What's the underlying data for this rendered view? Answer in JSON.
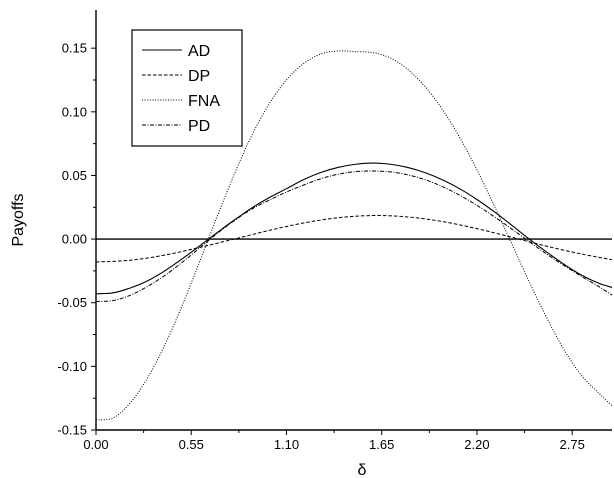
{
  "chart_data": {
    "type": "line",
    "title": "",
    "xlabel": "δ",
    "ylabel": "Payoffs",
    "xlim": [
      0,
      2.98
    ],
    "ylim": [
      -0.15,
      0.18
    ],
    "x_ticks": [
      0.0,
      0.55,
      1.1,
      1.65,
      2.2,
      2.75
    ],
    "x_tick_labels": [
      "0.00",
      "0.55",
      "1.10",
      "1.65",
      "2.20",
      "2.75"
    ],
    "y_ticks": [
      -0.15,
      -0.1,
      -0.05,
      0.0,
      0.05,
      0.1,
      0.15
    ],
    "y_tick_labels": [
      "-0.15",
      "-0.10",
      "-0.05",
      "0.00",
      "0.05",
      "0.10",
      "0.15"
    ],
    "grid": false,
    "zero_line": true,
    "legend_position": "top-left",
    "series": [
      {
        "name": "AD",
        "style": "solid",
        "x": [
          0.0,
          0.1,
          0.2,
          0.3,
          0.4,
          0.5,
          0.6,
          0.7,
          0.8,
          0.9,
          1.0,
          1.1,
          1.2,
          1.3,
          1.4,
          1.5,
          1.6,
          1.7,
          1.8,
          1.9,
          2.0,
          2.1,
          2.2,
          2.3,
          2.4,
          2.5,
          2.6,
          2.7,
          2.8,
          2.9,
          2.98
        ],
        "y": [
          -0.043,
          -0.0422,
          -0.0383,
          -0.0326,
          -0.0247,
          -0.0153,
          -0.0052,
          0.0051,
          0.0151,
          0.0245,
          0.0326,
          0.0396,
          0.0468,
          0.0524,
          0.0564,
          0.0588,
          0.0597,
          0.0588,
          0.0563,
          0.0522,
          0.0466,
          0.0396,
          0.0311,
          0.0215,
          0.011,
          0.0002,
          -0.0099,
          -0.0195,
          -0.028,
          -0.0345,
          -0.038
        ]
      },
      {
        "name": "DP",
        "style": "dashed",
        "x": [
          0.0,
          0.2,
          0.4,
          0.6,
          0.8,
          1.0,
          1.2,
          1.4,
          1.6,
          1.8,
          2.0,
          2.2,
          2.4,
          2.6,
          2.8,
          2.98
        ],
        "y": [
          -0.018,
          -0.0166,
          -0.0125,
          -0.0065,
          0.0001,
          0.0068,
          0.0127,
          0.0168,
          0.0185,
          0.0174,
          0.0138,
          0.0082,
          0.0015,
          -0.0055,
          -0.0116,
          -0.0162
        ]
      },
      {
        "name": "FNA",
        "style": "dotted",
        "x": [
          0.0,
          0.1,
          0.2,
          0.3,
          0.4,
          0.5,
          0.6,
          0.7,
          0.8,
          0.9,
          1.0,
          1.1,
          1.2,
          1.3,
          1.4,
          1.5,
          1.6,
          1.7,
          1.8,
          1.9,
          2.0,
          2.1,
          2.2,
          2.3,
          2.4,
          2.5,
          2.6,
          2.7,
          2.8,
          2.9,
          2.98
        ],
        "y": [
          -0.142,
          -0.1405,
          -0.1283,
          -0.1086,
          -0.0824,
          -0.0514,
          -0.0173,
          0.0178,
          0.0514,
          0.0815,
          0.1062,
          0.125,
          0.138,
          0.1455,
          0.1478,
          0.1473,
          0.1465,
          0.1423,
          0.1334,
          0.1199,
          0.102,
          0.08,
          0.0544,
          0.0262,
          -0.0033,
          -0.033,
          -0.061,
          -0.0862,
          -0.1065,
          -0.1205,
          -0.131
        ]
      },
      {
        "name": "PD",
        "style": "dashdot",
        "x": [
          0.0,
          0.1,
          0.2,
          0.3,
          0.4,
          0.5,
          0.6,
          0.7,
          0.8,
          0.9,
          1.0,
          1.1,
          1.2,
          1.3,
          1.4,
          1.5,
          1.6,
          1.7,
          1.8,
          1.9,
          2.0,
          2.1,
          2.2,
          2.3,
          2.4,
          2.5,
          2.6,
          2.7,
          2.8,
          2.9,
          2.98
        ],
        "y": [
          -0.049,
          -0.0483,
          -0.044,
          -0.037,
          -0.0283,
          -0.018,
          -0.0068,
          0.0045,
          0.0146,
          0.0236,
          0.0306,
          0.037,
          0.0425,
          0.0475,
          0.051,
          0.053,
          0.0535,
          0.0528,
          0.0505,
          0.0467,
          0.0413,
          0.0345,
          0.0265,
          0.0176,
          0.008,
          -0.0018,
          -0.0115,
          -0.0205,
          -0.029,
          -0.037,
          -0.044
        ]
      }
    ]
  }
}
